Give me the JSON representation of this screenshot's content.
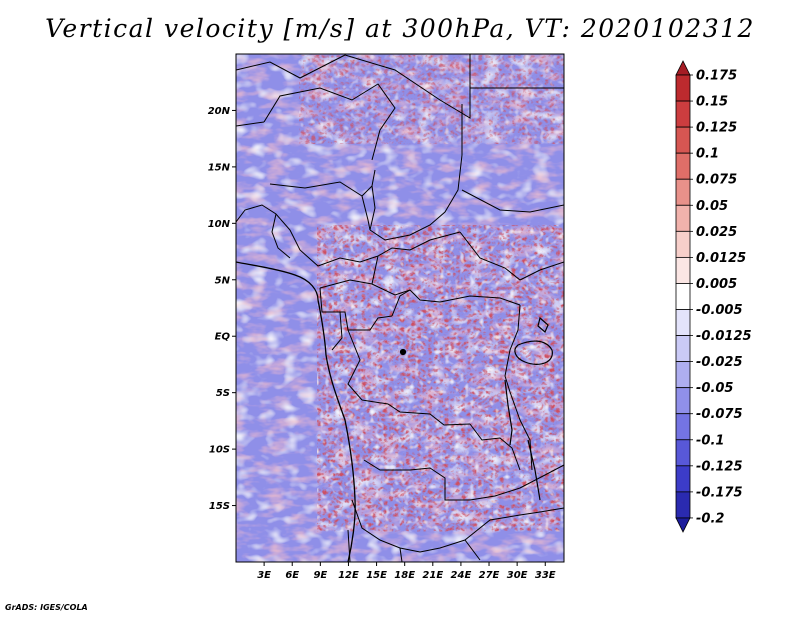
{
  "title": "Vertical velocity [m/s] at 300hPa, VT: 2020102312",
  "credit": "GrADS: IGES/COLA",
  "map": {
    "lon_range": [
      0,
      35
    ],
    "lat_range": [
      -20,
      25
    ],
    "lon_ticks": [
      "3E",
      "6E",
      "9E",
      "12E",
      "15E",
      "18E",
      "21E",
      "24E",
      "27E",
      "30E",
      "33E"
    ],
    "lat_ticks": [
      "20N",
      "15N",
      "10N",
      "5N",
      "EQ",
      "5S",
      "10S",
      "15S"
    ]
  },
  "colorbar": {
    "labels": [
      "0.175",
      "0.15",
      "0.125",
      "0.1",
      "0.075",
      "0.05",
      "0.025",
      "0.0125",
      "0.005",
      "-0.005",
      "-0.0125",
      "-0.025",
      "-0.05",
      "-0.075",
      "-0.1",
      "-0.125",
      "-0.175",
      "-0.2"
    ],
    "colors": [
      "#a51c24",
      "#bd2a2e",
      "#cc3d3f",
      "#d65652",
      "#df6e68",
      "#e8918a",
      "#f1b2ac",
      "#f7cfca",
      "#fbe6e4",
      "#ffffff",
      "#e3e3fb",
      "#cacaf6",
      "#aeaef0",
      "#9090ea",
      "#7474e3",
      "#5858d8",
      "#3c3cc8",
      "#2a2ab0",
      "#1c1c9c"
    ]
  }
}
